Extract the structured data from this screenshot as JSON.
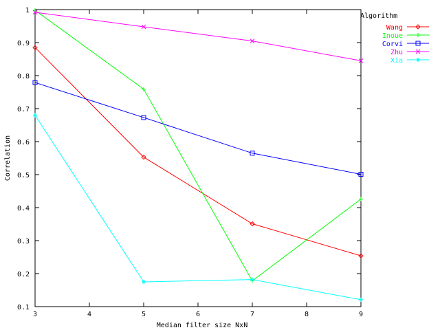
{
  "chart_data": {
    "type": "line",
    "title": "",
    "xlabel": "Median filter size NxN",
    "ylabel": "Correlation",
    "xlim": [
      3,
      9
    ],
    "ylim": [
      0.1,
      1
    ],
    "x_ticks": [
      "3",
      "4",
      "5",
      "6",
      "7",
      "8",
      "9"
    ],
    "y_ticks": [
      "0.1",
      "0.2",
      "0.3",
      "0.4",
      "0.5",
      "0.6",
      "0.7",
      "0.8",
      "0.9",
      "1"
    ],
    "grid": false,
    "legend_title": "Algorithm",
    "legend_position": "outside-top-right",
    "series": [
      {
        "name": "Wang",
        "color": "#ff0000",
        "marker": "diamond",
        "x": [
          3,
          5,
          7,
          9
        ],
        "y": [
          0.885,
          0.553,
          0.351,
          0.254
        ]
      },
      {
        "name": "Inoue",
        "color": "#00ff00",
        "marker": "plus",
        "x": [
          3,
          5,
          7,
          9
        ],
        "y": [
          0.998,
          0.759,
          0.178,
          0.426
        ]
      },
      {
        "name": "Corvi",
        "color": "#0000ff",
        "marker": "square",
        "x": [
          3,
          5,
          7,
          9
        ],
        "y": [
          0.779,
          0.673,
          0.565,
          0.501
        ]
      },
      {
        "name": "Zhu",
        "color": "#ff00ff",
        "marker": "cross",
        "x": [
          3,
          5,
          7,
          9
        ],
        "y": [
          0.992,
          0.948,
          0.905,
          0.845
        ]
      },
      {
        "name": "Xia",
        "color": "#00ffff",
        "marker": "asterisk",
        "x": [
          3,
          5,
          7,
          9
        ],
        "y": [
          0.68,
          0.175,
          0.182,
          0.121
        ]
      }
    ]
  }
}
